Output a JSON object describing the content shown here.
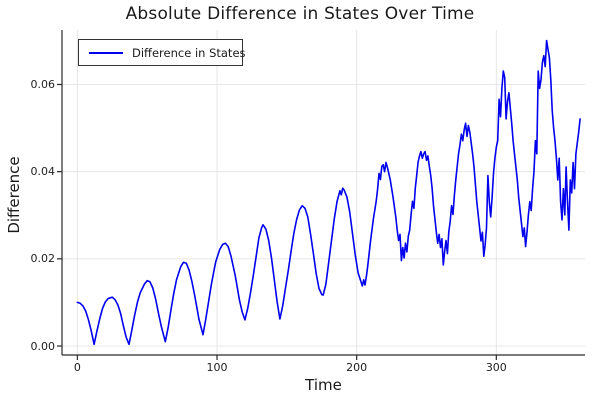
{
  "title": "Absolute Difference in States Over Time",
  "legend": {
    "entries": [
      {
        "label": "Difference in States",
        "color": "#0000ee"
      }
    ],
    "position": "top-left"
  },
  "chart_data": {
    "type": "line",
    "title": "Absolute Difference in States Over Time",
    "xlabel": "Time",
    "ylabel": "Difference",
    "xlim": [
      -11,
      363.5
    ],
    "ylim": [
      -0.00206,
      0.0725
    ],
    "xticks": [
      0,
      100,
      200,
      300
    ],
    "xtick_labels": [
      "0",
      "100",
      "200",
      "300"
    ],
    "yticks": [
      0.0,
      0.02,
      0.04,
      0.06
    ],
    "ytick_labels": [
      "0.00",
      "0.02",
      "0.04",
      "0.06"
    ],
    "grid": true,
    "grid_color": "#e4e4e4",
    "axis_color": "#2a2a2a",
    "legend_position": "top-left",
    "series": [
      {
        "name": "Difference in States",
        "color": "#0000ee",
        "points": [
          [
            0,
            0.01
          ],
          [
            2,
            0.0098
          ],
          [
            4,
            0.0092
          ],
          [
            6,
            0.008
          ],
          [
            8,
            0.006
          ],
          [
            10,
            0.0034
          ],
          [
            12,
            0.0004
          ],
          [
            14,
            0.0034
          ],
          [
            16,
            0.0062
          ],
          [
            18,
            0.0086
          ],
          [
            20,
            0.0101
          ],
          [
            22,
            0.0109
          ],
          [
            25,
            0.0112
          ],
          [
            27,
            0.0106
          ],
          [
            29,
            0.0094
          ],
          [
            31,
            0.0074
          ],
          [
            33,
            0.0046
          ],
          [
            35,
            0.002
          ],
          [
            37,
            0.0004
          ],
          [
            39,
            0.0036
          ],
          [
            41,
            0.007
          ],
          [
            43,
            0.01
          ],
          [
            45,
            0.0122
          ],
          [
            48,
            0.0142
          ],
          [
            50,
            0.015
          ],
          [
            52,
            0.0147
          ],
          [
            54,
            0.0133
          ],
          [
            56,
            0.0108
          ],
          [
            58,
            0.0076
          ],
          [
            60,
            0.0046
          ],
          [
            63,
            0.001
          ],
          [
            65,
            0.0042
          ],
          [
            67,
            0.0082
          ],
          [
            69,
            0.012
          ],
          [
            71,
            0.0152
          ],
          [
            74,
            0.0182
          ],
          [
            76,
            0.0192
          ],
          [
            78,
            0.019
          ],
          [
            80,
            0.0174
          ],
          [
            82,
            0.0148
          ],
          [
            84,
            0.0116
          ],
          [
            87,
            0.0062
          ],
          [
            90,
            0.0026
          ],
          [
            92,
            0.0062
          ],
          [
            94,
            0.0102
          ],
          [
            96,
            0.0142
          ],
          [
            99,
            0.0192
          ],
          [
            102,
            0.0222
          ],
          [
            104,
            0.0233
          ],
          [
            106,
            0.0236
          ],
          [
            108,
            0.0228
          ],
          [
            110,
            0.0206
          ],
          [
            113,
            0.0162
          ],
          [
            116,
            0.0106
          ],
          [
            118,
            0.0078
          ],
          [
            120,
            0.006
          ],
          [
            122,
            0.0086
          ],
          [
            124,
            0.0122
          ],
          [
            126,
            0.0162
          ],
          [
            128,
            0.0205
          ],
          [
            130,
            0.0248
          ],
          [
            132,
            0.0272
          ],
          [
            133,
            0.0278
          ],
          [
            135,
            0.0268
          ],
          [
            137,
            0.0242
          ],
          [
            139,
            0.0202
          ],
          [
            141,
            0.0152
          ],
          [
            143,
            0.0102
          ],
          [
            145,
            0.0062
          ],
          [
            147,
            0.0092
          ],
          [
            149,
            0.0132
          ],
          [
            151,
            0.0172
          ],
          [
            153,
            0.0216
          ],
          [
            155,
            0.0258
          ],
          [
            157,
            0.029
          ],
          [
            159,
            0.0312
          ],
          [
            161,
            0.0322
          ],
          [
            163,
            0.0316
          ],
          [
            165,
            0.0296
          ],
          [
            167,
            0.0256
          ],
          [
            169,
            0.0212
          ],
          [
            171,
            0.0166
          ],
          [
            173,
            0.0132
          ],
          [
            175,
            0.0118
          ],
          [
            176,
            0.0117
          ],
          [
            178,
            0.0142
          ],
          [
            180,
            0.0192
          ],
          [
            182,
            0.0242
          ],
          [
            184,
            0.0292
          ],
          [
            186,
            0.0332
          ],
          [
            188,
            0.0356
          ],
          [
            189,
            0.0347
          ],
          [
            190,
            0.0362
          ],
          [
            191,
            0.0358
          ],
          [
            193,
            0.0342
          ],
          [
            195,
            0.0308
          ],
          [
            197,
            0.0258
          ],
          [
            199,
            0.0208
          ],
          [
            201,
            0.0168
          ],
          [
            203,
            0.0148
          ],
          [
            204,
            0.0138
          ],
          [
            205,
            0.0152
          ],
          [
            206,
            0.014
          ],
          [
            207,
            0.016
          ],
          [
            208,
            0.0185
          ],
          [
            210,
            0.0242
          ],
          [
            212,
            0.0292
          ],
          [
            214,
            0.0332
          ],
          [
            215,
            0.036
          ],
          [
            216,
            0.0396
          ],
          [
            217,
            0.0382
          ],
          [
            218,
            0.0412
          ],
          [
            219,
            0.0416
          ],
          [
            220,
            0.04
          ],
          [
            221,
            0.0421
          ],
          [
            222,
            0.041
          ],
          [
            223,
            0.0396
          ],
          [
            224,
            0.0382
          ],
          [
            226,
            0.0342
          ],
          [
            228,
            0.0296
          ],
          [
            229,
            0.0266
          ],
          [
            230,
            0.0242
          ],
          [
            231,
            0.0256
          ],
          [
            232,
            0.0196
          ],
          [
            233,
            0.0226
          ],
          [
            234,
            0.0202
          ],
          [
            235,
            0.0236
          ],
          [
            236,
            0.0216
          ],
          [
            237,
            0.0252
          ],
          [
            238,
            0.0266
          ],
          [
            239,
            0.0302
          ],
          [
            240,
            0.0332
          ],
          [
            241,
            0.0316
          ],
          [
            242,
            0.0362
          ],
          [
            243,
            0.0392
          ],
          [
            244,
            0.0422
          ],
          [
            245,
            0.0436
          ],
          [
            246,
            0.0446
          ],
          [
            247,
            0.0431
          ],
          [
            248,
            0.0441
          ],
          [
            249,
            0.0446
          ],
          [
            250,
            0.0426
          ],
          [
            251,
            0.0436
          ],
          [
            252,
            0.0412
          ],
          [
            253,
            0.0392
          ],
          [
            254,
            0.0362
          ],
          [
            255,
            0.0322
          ],
          [
            256,
            0.0292
          ],
          [
            257,
            0.0262
          ],
          [
            258,
            0.0236
          ],
          [
            259,
            0.0256
          ],
          [
            260,
            0.0226
          ],
          [
            261,
            0.0246
          ],
          [
            262,
            0.0186
          ],
          [
            263,
            0.0216
          ],
          [
            264,
            0.0242
          ],
          [
            265,
            0.0212
          ],
          [
            266,
            0.0262
          ],
          [
            267,
            0.0286
          ],
          [
            268,
            0.0322
          ],
          [
            269,
            0.0302
          ],
          [
            270,
            0.0346
          ],
          [
            271,
            0.0382
          ],
          [
            272,
            0.0412
          ],
          [
            273,
            0.0442
          ],
          [
            274,
            0.0462
          ],
          [
            275,
            0.0486
          ],
          [
            276,
            0.0471
          ],
          [
            277,
            0.0496
          ],
          [
            278,
            0.0511
          ],
          [
            279,
            0.0481
          ],
          [
            280,
            0.0506
          ],
          [
            281,
            0.0491
          ],
          [
            282,
            0.0466
          ],
          [
            283,
            0.0441
          ],
          [
            284,
            0.0411
          ],
          [
            285,
            0.0371
          ],
          [
            286,
            0.0331
          ],
          [
            287,
            0.0301
          ],
          [
            288,
            0.0271
          ],
          [
            289,
            0.0241
          ],
          [
            290,
            0.0261
          ],
          [
            291,
            0.0206
          ],
          [
            292,
            0.0231
          ],
          [
            293,
            0.0271
          ],
          [
            294,
            0.0391
          ],
          [
            295,
            0.0331
          ],
          [
            296,
            0.0296
          ],
          [
            297,
            0.0341
          ],
          [
            298,
            0.0396
          ],
          [
            299,
            0.0431
          ],
          [
            300,
            0.0456
          ],
          [
            301,
            0.0471
          ],
          [
            302,
            0.0566
          ],
          [
            303,
            0.0526
          ],
          [
            304,
            0.0591
          ],
          [
            305,
            0.0631
          ],
          [
            306,
            0.0616
          ],
          [
            307,
            0.0521
          ],
          [
            308,
            0.0561
          ],
          [
            309,
            0.0581
          ],
          [
            310,
            0.0546
          ],
          [
            311,
            0.0511
          ],
          [
            312,
            0.0471
          ],
          [
            313,
            0.0441
          ],
          [
            314,
            0.0411
          ],
          [
            315,
            0.0381
          ],
          [
            316,
            0.0341
          ],
          [
            317,
            0.0311
          ],
          [
            318,
            0.0281
          ],
          [
            319,
            0.0251
          ],
          [
            320,
            0.0271
          ],
          [
            321,
            0.0228
          ],
          [
            322,
            0.0261
          ],
          [
            323,
            0.0301
          ],
          [
            324,
            0.0331
          ],
          [
            325,
            0.0311
          ],
          [
            326,
            0.0361
          ],
          [
            327,
            0.0401
          ],
          [
            328,
            0.0471
          ],
          [
            329,
            0.0441
          ],
          [
            330,
            0.0631
          ],
          [
            331,
            0.0591
          ],
          [
            332,
            0.0611
          ],
          [
            333,
            0.0651
          ],
          [
            334,
            0.0666
          ],
          [
            335,
            0.0641
          ],
          [
            336,
            0.0701
          ],
          [
            337,
            0.0681
          ],
          [
            338,
            0.0661
          ],
          [
            339,
            0.0611
          ],
          [
            340,
            0.0541
          ],
          [
            341,
            0.0501
          ],
          [
            342,
            0.0471
          ],
          [
            343,
            0.0431
          ],
          [
            344,
            0.0381
          ],
          [
            345,
            0.0431
          ],
          [
            346,
            0.0331
          ],
          [
            347,
            0.0289
          ],
          [
            348,
            0.0361
          ],
          [
            349,
            0.0301
          ],
          [
            350,
            0.0411
          ],
          [
            351,
            0.0331
          ],
          [
            352,
            0.0266
          ],
          [
            353,
            0.0381
          ],
          [
            354,
            0.0351
          ],
          [
            355,
            0.0421
          ],
          [
            356,
            0.0361
          ],
          [
            357,
            0.0441
          ],
          [
            358,
            0.0466
          ],
          [
            359,
            0.0491
          ],
          [
            360,
            0.0521
          ]
        ]
      }
    ]
  }
}
